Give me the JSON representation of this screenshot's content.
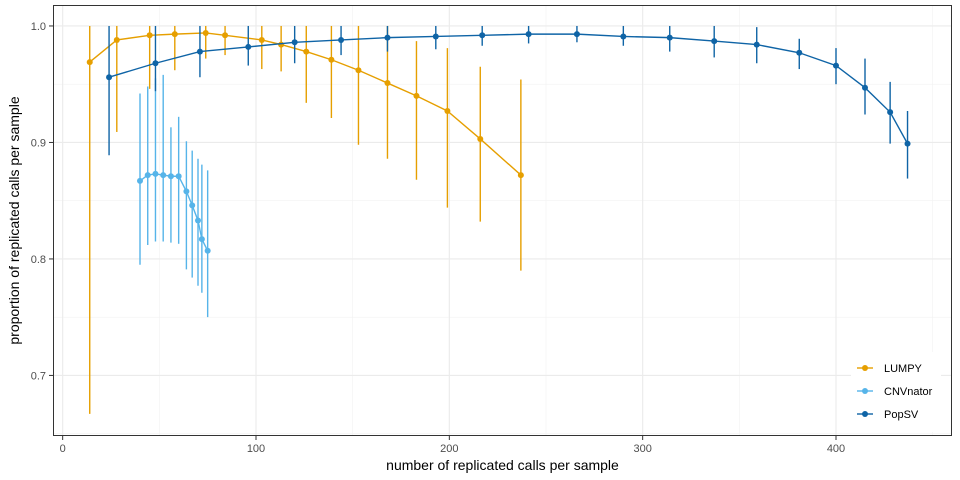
{
  "chart_data": {
    "type": "line",
    "xlabel": "number of replicated calls per sample",
    "ylabel": "proportion of replicated calls per sample",
    "xlim": [
      -5,
      460
    ],
    "ylim": [
      0.648,
      1.018
    ],
    "x_ticks": [
      0,
      100,
      200,
      300,
      400
    ],
    "y_ticks": [
      0.7,
      0.8,
      0.9,
      1.0
    ],
    "y_tick_labels": [
      "0.7",
      "0.8",
      "0.9",
      "1.0"
    ],
    "grid": true,
    "legend_position": "bottom-right",
    "error_bars": true,
    "series": [
      {
        "name": "LUMPY",
        "color": "#E69F00",
        "points": [
          {
            "x": 14,
            "y": 0.969,
            "lo": 0.667,
            "hi": 1.0
          },
          {
            "x": 28,
            "y": 0.988,
            "lo": 0.909,
            "hi": 1.0
          },
          {
            "x": 45,
            "y": 0.992,
            "lo": 0.946,
            "hi": 1.0
          },
          {
            "x": 58,
            "y": 0.993,
            "lo": 0.962,
            "hi": 1.0
          },
          {
            "x": 74,
            "y": 0.994,
            "lo": 0.972,
            "hi": 1.0
          },
          {
            "x": 84,
            "y": 0.992,
            "lo": 0.975,
            "hi": 1.0
          },
          {
            "x": 103,
            "y": 0.988,
            "lo": 0.963,
            "hi": 1.0
          },
          {
            "x": 113,
            "y": 0.984,
            "lo": 0.961,
            "hi": 1.0
          },
          {
            "x": 126,
            "y": 0.978,
            "lo": 0.934,
            "hi": 1.0
          },
          {
            "x": 139,
            "y": 0.971,
            "lo": 0.921,
            "hi": 1.0
          },
          {
            "x": 153,
            "y": 0.962,
            "lo": 0.898,
            "hi": 1.0
          },
          {
            "x": 168,
            "y": 0.951,
            "lo": 0.886,
            "hi": 1.0
          },
          {
            "x": 183,
            "y": 0.94,
            "lo": 0.868,
            "hi": 0.987
          },
          {
            "x": 199,
            "y": 0.927,
            "lo": 0.844,
            "hi": 0.981
          },
          {
            "x": 216,
            "y": 0.903,
            "lo": 0.832,
            "hi": 0.965
          },
          {
            "x": 237,
            "y": 0.872,
            "lo": 0.79,
            "hi": 0.954
          }
        ]
      },
      {
        "name": "CNVnator",
        "color": "#56B4E9",
        "points": [
          {
            "x": 40,
            "y": 0.867,
            "lo": 0.795,
            "hi": 0.942
          },
          {
            "x": 44,
            "y": 0.872,
            "lo": 0.812,
            "hi": 0.948
          },
          {
            "x": 48,
            "y": 0.873,
            "lo": 0.815,
            "hi": 0.955
          },
          {
            "x": 52,
            "y": 0.872,
            "lo": 0.815,
            "hi": 0.958
          },
          {
            "x": 56,
            "y": 0.871,
            "lo": 0.814,
            "hi": 0.913
          },
          {
            "x": 60,
            "y": 0.871,
            "lo": 0.813,
            "hi": 0.922
          },
          {
            "x": 64,
            "y": 0.858,
            "lo": 0.791,
            "hi": 0.901
          },
          {
            "x": 67,
            "y": 0.846,
            "lo": 0.784,
            "hi": 0.893
          },
          {
            "x": 70,
            "y": 0.833,
            "lo": 0.777,
            "hi": 0.886
          },
          {
            "x": 72,
            "y": 0.817,
            "lo": 0.771,
            "hi": 0.881
          },
          {
            "x": 75,
            "y": 0.807,
            "lo": 0.75,
            "hi": 0.876
          }
        ]
      },
      {
        "name": "PopSV",
        "color": "#0F64A6",
        "points": [
          {
            "x": 24,
            "y": 0.956,
            "lo": 0.889,
            "hi": 1.0
          },
          {
            "x": 48,
            "y": 0.968,
            "lo": 0.944,
            "hi": 1.0
          },
          {
            "x": 71,
            "y": 0.978,
            "lo": 0.956,
            "hi": 1.0
          },
          {
            "x": 96,
            "y": 0.982,
            "lo": 0.966,
            "hi": 1.0
          },
          {
            "x": 120,
            "y": 0.986,
            "lo": 0.968,
            "hi": 1.0
          },
          {
            "x": 144,
            "y": 0.988,
            "lo": 0.975,
            "hi": 1.0
          },
          {
            "x": 168,
            "y": 0.99,
            "lo": 0.978,
            "hi": 1.0
          },
          {
            "x": 193,
            "y": 0.991,
            "lo": 0.98,
            "hi": 1.0
          },
          {
            "x": 217,
            "y": 0.992,
            "lo": 0.983,
            "hi": 1.0
          },
          {
            "x": 241,
            "y": 0.993,
            "lo": 0.985,
            "hi": 1.0
          },
          {
            "x": 266,
            "y": 0.993,
            "lo": 0.986,
            "hi": 1.0
          },
          {
            "x": 290,
            "y": 0.991,
            "lo": 0.983,
            "hi": 1.0
          },
          {
            "x": 314,
            "y": 0.99,
            "lo": 0.978,
            "hi": 1.0
          },
          {
            "x": 337,
            "y": 0.987,
            "lo": 0.973,
            "hi": 1.0
          },
          {
            "x": 359,
            "y": 0.984,
            "lo": 0.968,
            "hi": 0.999
          },
          {
            "x": 381,
            "y": 0.977,
            "lo": 0.963,
            "hi": 0.989
          },
          {
            "x": 400,
            "y": 0.966,
            "lo": 0.95,
            "hi": 0.981
          },
          {
            "x": 415,
            "y": 0.947,
            "lo": 0.924,
            "hi": 0.972
          },
          {
            "x": 428,
            "y": 0.926,
            "lo": 0.899,
            "hi": 0.952
          },
          {
            "x": 437,
            "y": 0.899,
            "lo": 0.869,
            "hi": 0.927
          }
        ]
      }
    ]
  }
}
